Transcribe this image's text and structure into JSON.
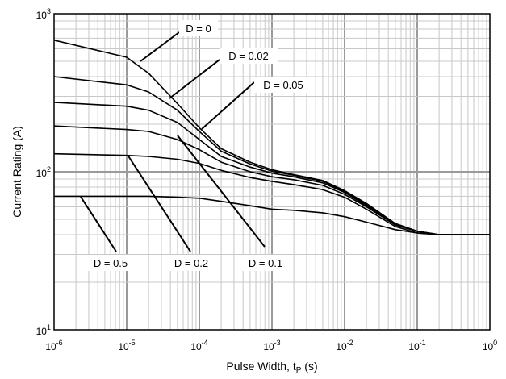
{
  "chart_data": {
    "type": "line",
    "xlabel": "Pulse Width, t",
    "xlabel_sub": "P",
    "xlabel_unit": " (s)",
    "ylabel": "Current Rating (A)",
    "x_scale": "log",
    "y_scale": "log",
    "xlim": [
      1e-06,
      1
    ],
    "ylim": [
      10,
      1000
    ],
    "grid": true,
    "x_ticks": [
      {
        "value": 1e-06,
        "base": "10",
        "exp": "-6"
      },
      {
        "value": 1e-05,
        "base": "10",
        "exp": "-5"
      },
      {
        "value": 0.0001,
        "base": "10",
        "exp": "-4"
      },
      {
        "value": 0.001,
        "base": "10",
        "exp": "-3"
      },
      {
        "value": 0.01,
        "base": "10",
        "exp": "-2"
      },
      {
        "value": 0.1,
        "base": "10",
        "exp": "-1"
      },
      {
        "value": 1,
        "base": "10",
        "exp": "0"
      }
    ],
    "y_ticks": [
      {
        "value": 10,
        "base": "10",
        "exp": "1"
      },
      {
        "value": 100,
        "base": "10",
        "exp": "2"
      },
      {
        "value": 1000,
        "base": "10",
        "exp": "3"
      }
    ],
    "series": [
      {
        "x": [
          1e-06,
          1e-05,
          2e-05,
          5e-05,
          0.0001,
          0.0002,
          0.0005,
          0.001,
          0.002,
          0.005,
          0.01,
          0.02,
          0.05,
          0.1,
          0.2,
          0.5,
          1
        ],
        "y": [
          680,
          530,
          420,
          270,
          190,
          140,
          115,
          103,
          96,
          88,
          76,
          63,
          47,
          42,
          40,
          40,
          40
        ]
      },
      {
        "x": [
          1e-06,
          1e-05,
          2e-05,
          5e-05,
          0.0001,
          0.0002,
          0.0005,
          0.001,
          0.002,
          0.005,
          0.01,
          0.02,
          0.05,
          0.1,
          0.2,
          0.5,
          1
        ],
        "y": [
          400,
          355,
          320,
          245,
          180,
          135,
          112,
          101,
          95,
          87,
          75,
          62,
          47,
          42,
          40,
          40,
          40
        ]
      },
      {
        "x": [
          1e-06,
          1e-05,
          2e-05,
          5e-05,
          0.0001,
          0.0002,
          0.0005,
          0.001,
          0.002,
          0.005,
          0.01,
          0.02,
          0.05,
          0.1,
          0.2,
          0.5,
          1
        ],
        "y": [
          275,
          260,
          245,
          205,
          160,
          125,
          107,
          98,
          93,
          85,
          74,
          61,
          46,
          42,
          40,
          40,
          40
        ]
      },
      {
        "x": [
          1e-06,
          1e-05,
          2e-05,
          5e-05,
          0.0001,
          0.0002,
          0.0005,
          0.001,
          0.002,
          0.005,
          0.01,
          0.02,
          0.05,
          0.1,
          0.2,
          0.5,
          1
        ],
        "y": [
          195,
          185,
          180,
          160,
          138,
          115,
          100,
          93,
          89,
          82,
          72,
          60,
          46,
          42,
          40,
          40,
          40
        ]
      },
      {
        "x": [
          1e-06,
          1e-05,
          2e-05,
          5e-05,
          0.0001,
          0.0002,
          0.0005,
          0.001,
          0.002,
          0.005,
          0.01,
          0.02,
          0.05,
          0.1,
          0.2,
          0.5,
          1
        ],
        "y": [
          130,
          127,
          125,
          120,
          113,
          102,
          92,
          87,
          83,
          77,
          69,
          58,
          45,
          41,
          40,
          40,
          40
        ]
      },
      {
        "x": [
          1e-06,
          1e-05,
          2e-05,
          5e-05,
          0.0001,
          0.0002,
          0.0005,
          0.001,
          0.002,
          0.005,
          0.01,
          0.02,
          0.05,
          0.1,
          0.2,
          0.5,
          1
        ],
        "y": [
          70,
          70,
          70,
          69,
          68,
          65,
          61,
          58,
          57,
          55,
          52,
          48,
          43,
          41,
          40,
          40,
          40
        ]
      }
    ],
    "annotations": [
      {
        "text": "D = 0"
      },
      {
        "text": "D = 0.02"
      },
      {
        "text": "D = 0.05"
      },
      {
        "text": "D = 0.5"
      },
      {
        "text": "D = 0.2"
      },
      {
        "text": "D = 0.1"
      }
    ]
  }
}
